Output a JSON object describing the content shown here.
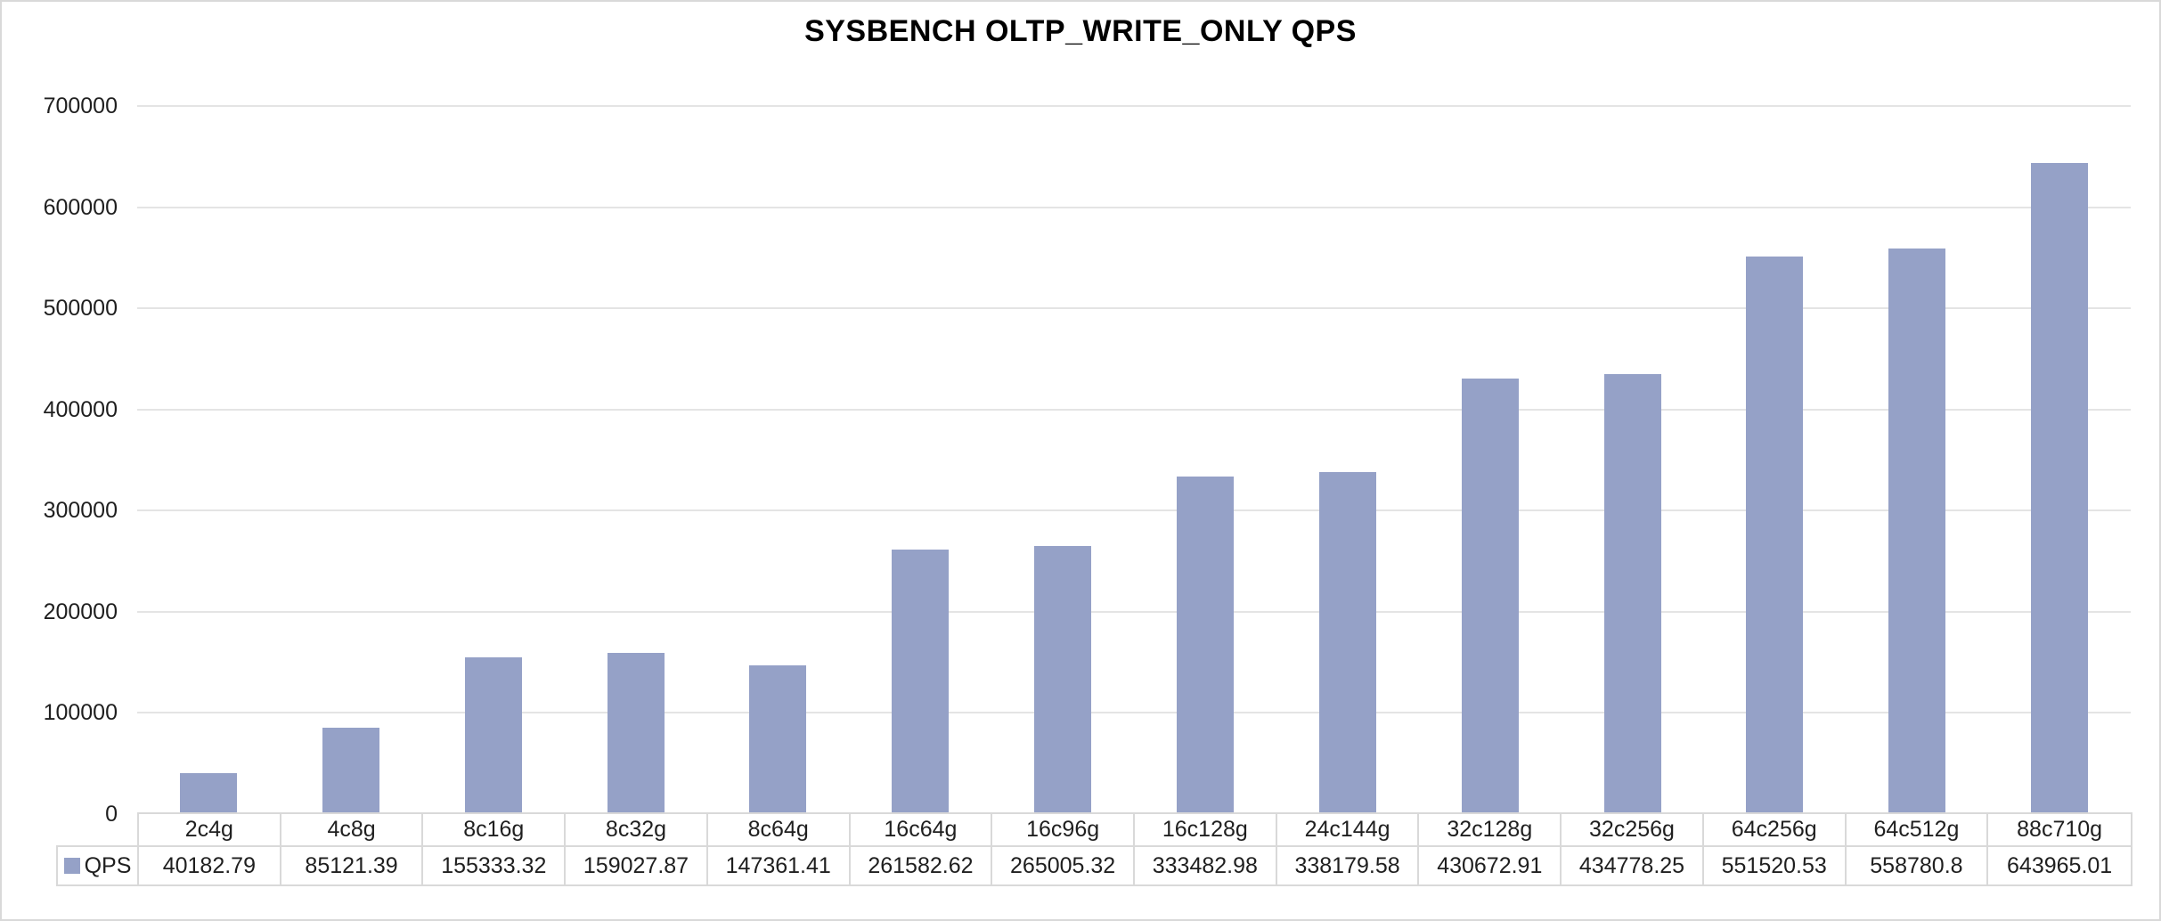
{
  "colors": {
    "bar": "#95A1C7",
    "gridline": "#E4E4E4",
    "table_border": "#D9D9D9",
    "text": "#1f1f1f",
    "title_text": "#000000",
    "background": "#FFFFFF"
  },
  "chart_data": {
    "type": "bar",
    "title": "SYSBENCH OLTP_WRITE_ONLY QPS",
    "xlabel": "",
    "ylabel": "",
    "categories": [
      "2c4g",
      "4c8g",
      "8c16g",
      "8c32g",
      "8c64g",
      "16c64g",
      "16c96g",
      "16c128g",
      "24c144g",
      "32c128g",
      "32c256g",
      "64c256g",
      "64c512g",
      "88c710g"
    ],
    "series": [
      {
        "name": "QPS",
        "values": [
          40182.79,
          85121.39,
          155333.32,
          159027.87,
          147361.41,
          261582.62,
          265005.32,
          333482.98,
          338179.58,
          430672.91,
          434778.25,
          551520.53,
          558780.8,
          643965.01
        ]
      }
    ],
    "value_labels": [
      "40182.79",
      "85121.39",
      "155333.32",
      "159027.87",
      "147361.41",
      "261582.62",
      "265005.32",
      "333482.98",
      "338179.58",
      "430672.91",
      "434778.25",
      "551520.53",
      "558780.8",
      "643965.01"
    ],
    "ylim": [
      0,
      700000
    ],
    "yticks": [
      0,
      100000,
      200000,
      300000,
      400000,
      500000,
      600000,
      700000
    ],
    "grid": true,
    "legend_position": "data-table-left",
    "data_table_shown": true
  }
}
